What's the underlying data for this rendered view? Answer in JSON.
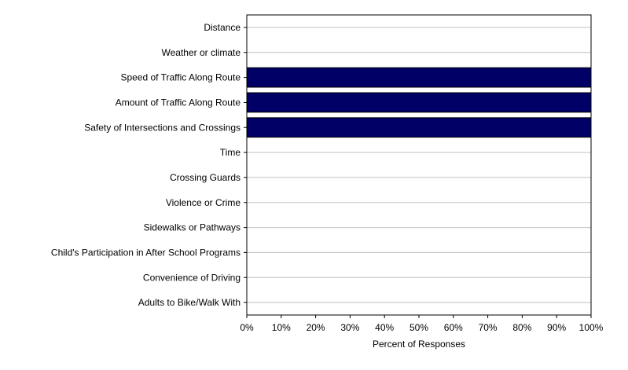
{
  "chart_data": {
    "type": "bar",
    "orientation": "horizontal",
    "categories": [
      "Distance",
      "Weather or climate",
      "Speed of Traffic Along Route",
      "Amount of Traffic Along Route",
      "Safety of Intersections and Crossings",
      "Time",
      "Crossing Guards",
      "Violence or Crime",
      "Sidewalks or Pathways",
      "Child's Participation in After School Programs",
      "Convenience of Driving",
      "Adults to Bike/Walk With"
    ],
    "values": [
      0,
      0,
      100,
      100,
      100,
      0,
      0,
      0,
      0,
      0,
      0,
      0
    ],
    "xlabel": "Percent of Responses",
    "xlim": [
      0,
      100
    ],
    "x_ticks": [
      "0%",
      "10%",
      "20%",
      "30%",
      "40%",
      "50%",
      "60%",
      "70%",
      "80%",
      "90%",
      "100%"
    ],
    "x_tick_values": [
      0,
      10,
      20,
      30,
      40,
      50,
      60,
      70,
      80,
      90,
      100
    ],
    "grid": "horizontal",
    "bar_color": "#000066",
    "legend": "none"
  }
}
